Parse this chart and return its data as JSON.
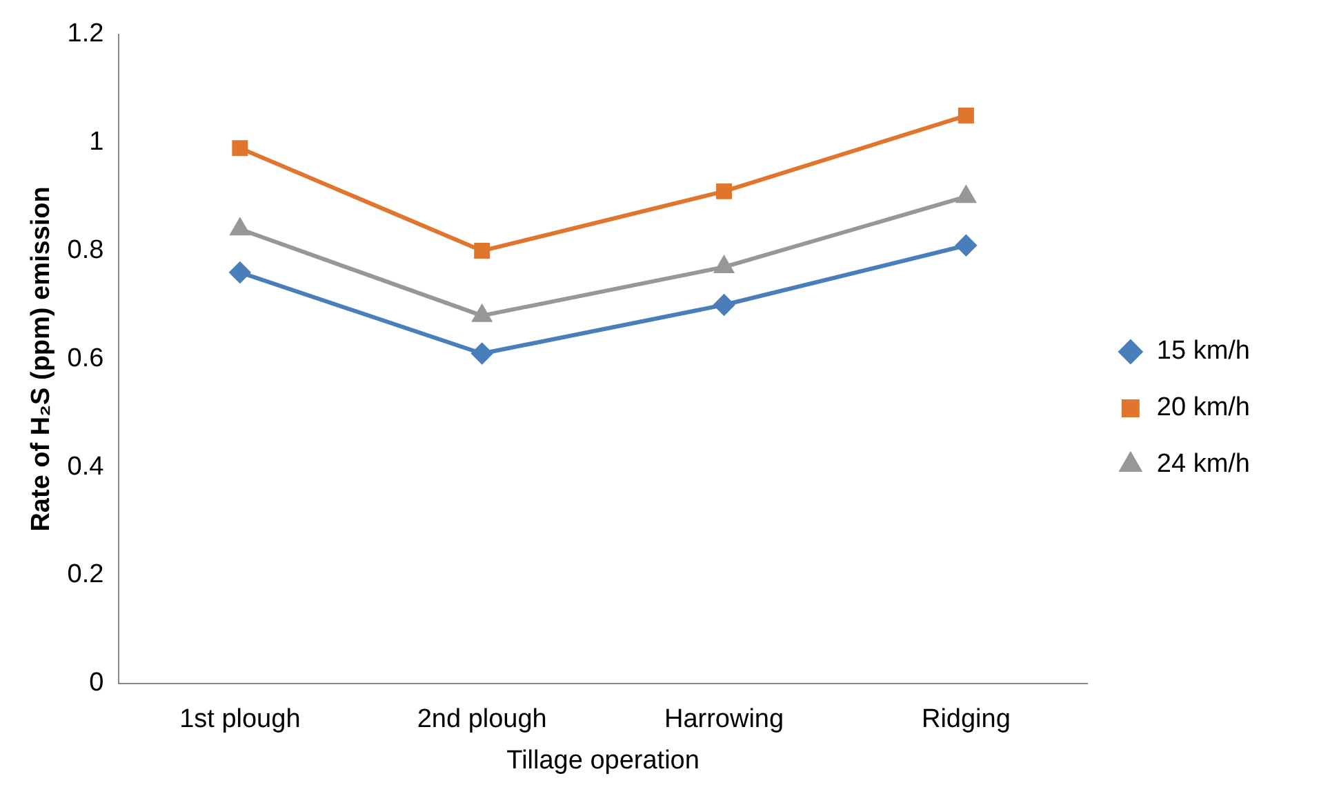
{
  "chart_data": {
    "type": "line",
    "ylabel": "Rate of H₂S (ppm) emission",
    "xlabel": "Tillage operation",
    "categories": [
      "1st plough",
      "2nd plough",
      "Harrowing",
      "Ridging"
    ],
    "series": [
      {
        "name": "15 km/h",
        "color": "#4a7ebb",
        "marker": "diamond",
        "values": [
          0.76,
          0.61,
          0.7,
          0.81
        ]
      },
      {
        "name": "20 km/h",
        "color": "#e0752d",
        "marker": "square",
        "values": [
          0.99,
          0.8,
          0.91,
          1.05
        ]
      },
      {
        "name": "24 km/h",
        "color": "#979797",
        "marker": "triangle",
        "values": [
          0.84,
          0.68,
          0.77,
          0.9
        ]
      }
    ],
    "ylim": [
      0,
      1.2
    ],
    "yticks": [
      0,
      0.2,
      0.4,
      0.6,
      0.8,
      1,
      1.2
    ],
    "grid": false,
    "legend": "right",
    "line_style": "solid"
  }
}
